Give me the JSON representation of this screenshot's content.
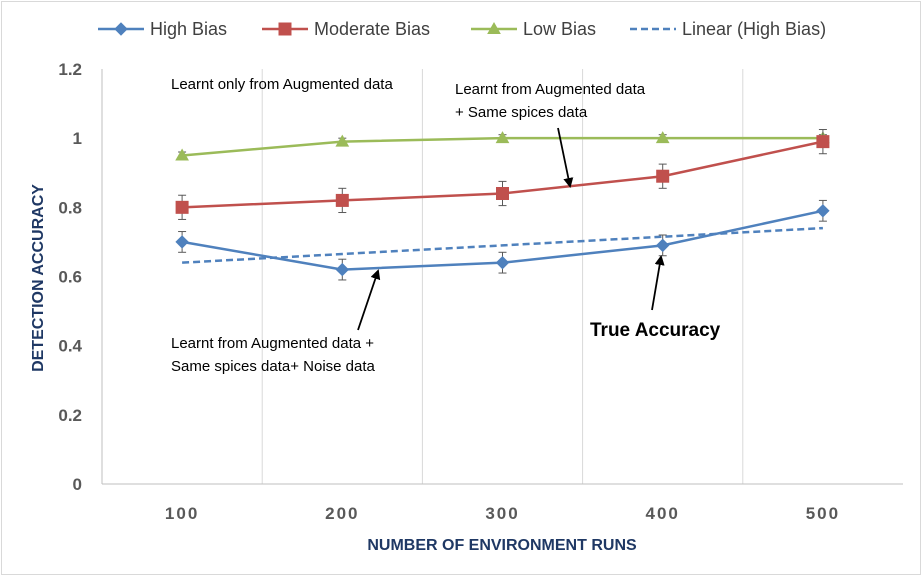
{
  "chart_data": {
    "type": "line",
    "title": "",
    "xlabel": "NUMBER OF ENVIRONMENT RUNS",
    "ylabel": "DETECTION ACCURACY",
    "x": [
      100,
      200,
      300,
      400,
      500
    ],
    "x_tick_labels": [
      "100",
      "200",
      "300",
      "400",
      "500"
    ],
    "xlim": [
      50,
      550
    ],
    "ylim": [
      0,
      1.2
    ],
    "y_ticks": [
      0,
      0.2,
      0.4,
      0.6,
      0.8,
      1,
      1.2
    ],
    "y_tick_labels": [
      "0",
      "0.2",
      "0.4",
      "0.6",
      "0.8",
      "1",
      "1.2"
    ],
    "grid": "vertical",
    "legend_position": "top",
    "series": [
      {
        "name": "High Bias",
        "values": [
          0.7,
          0.62,
          0.64,
          0.69,
          0.79
        ],
        "error": [
          0.03,
          0.03,
          0.03,
          0.03,
          0.03
        ],
        "color": "#4f81bd",
        "marker": "diamond",
        "style": "solid"
      },
      {
        "name": "Moderate Bias",
        "values": [
          0.8,
          0.82,
          0.84,
          0.89,
          0.99
        ],
        "error": [
          0.035,
          0.035,
          0.035,
          0.035,
          0.035
        ],
        "color": "#c0504d",
        "marker": "square",
        "style": "solid"
      },
      {
        "name": "Low Bias",
        "values": [
          0.95,
          0.99,
          1.0,
          1.0,
          1.0
        ],
        "error": [
          0.01,
          0.01,
          0.01,
          0.01,
          0.01
        ],
        "color": "#9bbb59",
        "marker": "triangle",
        "style": "solid"
      },
      {
        "name": "Linear (High Bias)",
        "values": [
          0.64,
          0.665,
          0.69,
          0.715,
          0.74
        ],
        "color": "#4f81bd",
        "marker": "none",
        "style": "dashed"
      }
    ],
    "annotations": [
      {
        "id": "aug",
        "lines": [
          "Learnt only from Augmented data"
        ]
      },
      {
        "id": "aug-same",
        "lines": [
          "Learnt from Augmented data",
          "+ Same spices data"
        ]
      },
      {
        "id": "aug-same-noise",
        "lines": [
          "Learnt from Augmented data +",
          "Same spices data+ Noise data"
        ]
      },
      {
        "id": "true-acc",
        "lines": [
          "True Accuracy"
        ]
      }
    ]
  }
}
